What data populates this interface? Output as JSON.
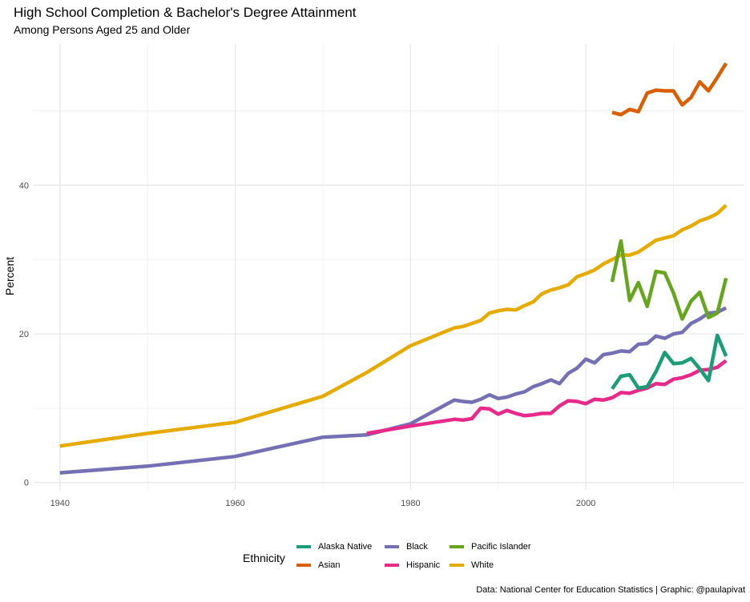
{
  "chart_data": {
    "type": "line",
    "title": "High School Completion & Bachelor's Degree Attainment",
    "subtitle": "Among Persons Aged 25 and Older",
    "xlabel": "",
    "ylabel": "Percent",
    "xlim": [
      1937,
      2018
    ],
    "ylim": [
      -1,
      59
    ],
    "x_ticks": [
      1940,
      1960,
      1980,
      2000
    ],
    "y_ticks": [
      0,
      20,
      40
    ],
    "grid": true,
    "legend_title": "Ethnicity",
    "legend_position": "bottom",
    "caption": "Data: National Center for Education Statistics | Graphic: @paulapivat",
    "series": [
      {
        "name": "White",
        "color": "#E6AB02",
        "points": [
          [
            1940,
            4.9
          ],
          [
            1950,
            6.6
          ],
          [
            1960,
            8.1
          ],
          [
            1970,
            11.6
          ],
          [
            1975,
            14.8
          ],
          [
            1980,
            18.4
          ],
          [
            1985,
            20.8
          ],
          [
            1986,
            21.0
          ],
          [
            1987,
            21.4
          ],
          [
            1988,
            21.8
          ],
          [
            1989,
            22.8
          ],
          [
            1990,
            23.1
          ],
          [
            1991,
            23.3
          ],
          [
            1992,
            23.2
          ],
          [
            1993,
            23.8
          ],
          [
            1994,
            24.3
          ],
          [
            1995,
            25.4
          ],
          [
            1996,
            25.9
          ],
          [
            1997,
            26.2
          ],
          [
            1998,
            26.6
          ],
          [
            1999,
            27.7
          ],
          [
            2000,
            28.1
          ],
          [
            2001,
            28.6
          ],
          [
            2002,
            29.4
          ],
          [
            2003,
            30.0
          ],
          [
            2004,
            30.6
          ],
          [
            2005,
            30.6
          ],
          [
            2006,
            31.0
          ],
          [
            2007,
            31.8
          ],
          [
            2008,
            32.6
          ],
          [
            2009,
            32.9
          ],
          [
            2010,
            33.2
          ],
          [
            2011,
            34.0
          ],
          [
            2012,
            34.5
          ],
          [
            2013,
            35.2
          ],
          [
            2014,
            35.6
          ],
          [
            2015,
            36.2
          ],
          [
            2016,
            37.3
          ]
        ]
      },
      {
        "name": "Black",
        "color": "#7570B3",
        "points": [
          [
            1940,
            1.3
          ],
          [
            1950,
            2.2
          ],
          [
            1960,
            3.5
          ],
          [
            1970,
            6.1
          ],
          [
            1975,
            6.4
          ],
          [
            1980,
            7.9
          ],
          [
            1985,
            11.1
          ],
          [
            1986,
            10.9
          ],
          [
            1987,
            10.8
          ],
          [
            1988,
            11.2
          ],
          [
            1989,
            11.8
          ],
          [
            1990,
            11.3
          ],
          [
            1991,
            11.5
          ],
          [
            1992,
            11.9
          ],
          [
            1993,
            12.2
          ],
          [
            1994,
            12.9
          ],
          [
            1995,
            13.3
          ],
          [
            1996,
            13.8
          ],
          [
            1997,
            13.3
          ],
          [
            1998,
            14.7
          ],
          [
            1999,
            15.4
          ],
          [
            2000,
            16.6
          ],
          [
            2001,
            16.1
          ],
          [
            2002,
            17.2
          ],
          [
            2003,
            17.4
          ],
          [
            2004,
            17.7
          ],
          [
            2005,
            17.6
          ],
          [
            2006,
            18.6
          ],
          [
            2007,
            18.7
          ],
          [
            2008,
            19.7
          ],
          [
            2009,
            19.4
          ],
          [
            2010,
            20.0
          ],
          [
            2011,
            20.2
          ],
          [
            2012,
            21.4
          ],
          [
            2013,
            22.0
          ],
          [
            2014,
            22.8
          ],
          [
            2015,
            22.9
          ],
          [
            2016,
            23.5
          ]
        ]
      },
      {
        "name": "Hispanic",
        "color": "#E7298A",
        "points": [
          [
            1975,
            6.6
          ],
          [
            1980,
            7.6
          ],
          [
            1985,
            8.5
          ],
          [
            1986,
            8.4
          ],
          [
            1987,
            8.6
          ],
          [
            1988,
            10.0
          ],
          [
            1989,
            9.9
          ],
          [
            1990,
            9.2
          ],
          [
            1991,
            9.7
          ],
          [
            1992,
            9.3
          ],
          [
            1993,
            9.0
          ],
          [
            1994,
            9.1
          ],
          [
            1995,
            9.3
          ],
          [
            1996,
            9.3
          ],
          [
            1997,
            10.3
          ],
          [
            1998,
            11.0
          ],
          [
            1999,
            10.9
          ],
          [
            2000,
            10.6
          ],
          [
            2001,
            11.2
          ],
          [
            2002,
            11.1
          ],
          [
            2003,
            11.4
          ],
          [
            2004,
            12.1
          ],
          [
            2005,
            12.0
          ],
          [
            2006,
            12.4
          ],
          [
            2007,
            12.7
          ],
          [
            2008,
            13.3
          ],
          [
            2009,
            13.2
          ],
          [
            2010,
            13.9
          ],
          [
            2011,
            14.1
          ],
          [
            2012,
            14.5
          ],
          [
            2013,
            15.1
          ],
          [
            2014,
            15.2
          ],
          [
            2015,
            15.5
          ],
          [
            2016,
            16.4
          ]
        ]
      },
      {
        "name": "Asian",
        "color": "#D95F02",
        "points": [
          [
            2003,
            49.8
          ],
          [
            2004,
            49.5
          ],
          [
            2005,
            50.2
          ],
          [
            2006,
            49.9
          ],
          [
            2007,
            52.4
          ],
          [
            2008,
            52.8
          ],
          [
            2009,
            52.7
          ],
          [
            2010,
            52.7
          ],
          [
            2011,
            50.8
          ],
          [
            2012,
            51.8
          ],
          [
            2013,
            53.9
          ],
          [
            2014,
            52.7
          ],
          [
            2015,
            54.5
          ],
          [
            2016,
            56.4
          ]
        ]
      },
      {
        "name": "Pacific Islander",
        "color": "#66A61E",
        "points": [
          [
            2003,
            27.0
          ],
          [
            2004,
            32.5
          ],
          [
            2005,
            24.5
          ],
          [
            2006,
            26.9
          ],
          [
            2007,
            23.7
          ],
          [
            2008,
            28.4
          ],
          [
            2009,
            28.2
          ],
          [
            2010,
            25.5
          ],
          [
            2011,
            22.0
          ],
          [
            2012,
            24.4
          ],
          [
            2013,
            25.6
          ],
          [
            2014,
            22.2
          ],
          [
            2015,
            22.8
          ],
          [
            2016,
            27.5
          ]
        ]
      },
      {
        "name": "Alaska Native",
        "color": "#1B9E77",
        "points": [
          [
            2003,
            12.6
          ],
          [
            2004,
            14.3
          ],
          [
            2005,
            14.5
          ],
          [
            2006,
            12.7
          ],
          [
            2007,
            12.9
          ],
          [
            2008,
            14.9
          ],
          [
            2009,
            17.5
          ],
          [
            2010,
            16.0
          ],
          [
            2011,
            16.1
          ],
          [
            2012,
            16.7
          ],
          [
            2013,
            15.3
          ],
          [
            2014,
            13.7
          ],
          [
            2015,
            19.8
          ],
          [
            2016,
            17.0
          ]
        ]
      }
    ],
    "legend_order": [
      "Alaska Native",
      "Asian",
      "Black",
      "Hispanic",
      "Pacific Islander",
      "White"
    ]
  }
}
